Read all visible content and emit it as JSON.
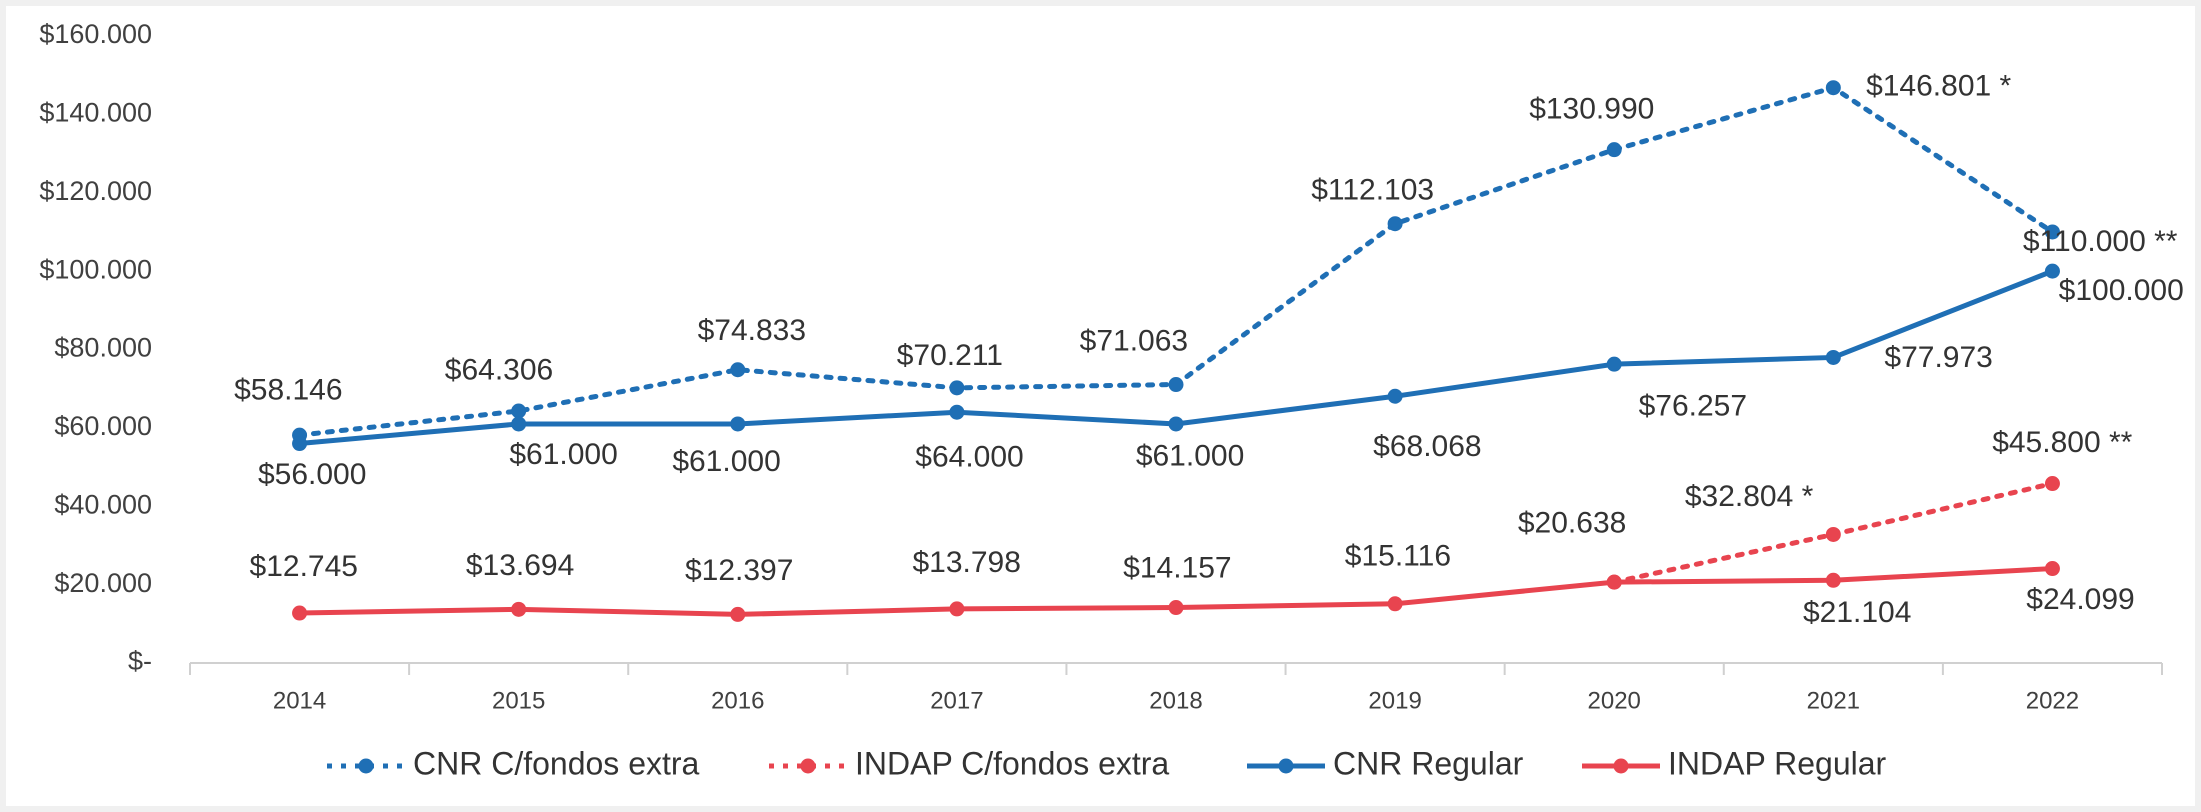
{
  "chart_data": {
    "type": "line",
    "categories": [
      "2014",
      "2015",
      "2016",
      "2017",
      "2018",
      "2019",
      "2020",
      "2021",
      "2022"
    ],
    "series": [
      {
        "name": "CNR C/fondos extra",
        "color": "#1f6fb5",
        "line_style": "dotted",
        "values": [
          58146,
          64306,
          74833,
          70211,
          71063,
          112103,
          130990,
          146801,
          110000
        ],
        "value_labels": [
          "$58.146",
          "$64.306",
          "$74.833",
          "$70.211",
          "$71.063",
          "$112.103",
          "$130.990",
          "$146.801 *",
          "$110.000 **"
        ]
      },
      {
        "name": "INDAP C/fondos extra",
        "color": "#e8444f",
        "line_style": "dotted",
        "values": [
          null,
          null,
          null,
          null,
          null,
          null,
          20638,
          32804,
          45800
        ],
        "value_labels": [
          null,
          null,
          null,
          null,
          null,
          null,
          null,
          "$32.804 *",
          "$45.800 **"
        ]
      },
      {
        "name": "CNR Regular",
        "color": "#1f6fb5",
        "line_style": "solid",
        "values": [
          56000,
          61000,
          61000,
          64000,
          61000,
          68068,
          76257,
          77973,
          100000
        ],
        "value_labels": [
          "$56.000",
          "$61.000",
          "$61.000",
          "$64.000",
          "$61.000",
          "$68.068",
          "$76.257",
          "$77.973",
          "$100.000"
        ]
      },
      {
        "name": "INDAP Regular",
        "color": "#e8444f",
        "line_style": "solid",
        "values": [
          12745,
          13694,
          12397,
          13798,
          14157,
          15116,
          20638,
          21104,
          24099
        ],
        "value_labels": [
          "$12.745",
          "$13.694",
          "$12.397",
          "$13.798",
          "$14.157",
          "$15.116",
          "$20.638",
          "$21.104",
          "$24.099"
        ]
      }
    ],
    "ylim": [
      0,
      160000
    ],
    "yticks": [
      {
        "value": 0,
        "label": "$-"
      },
      {
        "value": 20000,
        "label": "$20.000"
      },
      {
        "value": 40000,
        "label": "$40.000"
      },
      {
        "value": 60000,
        "label": "$60.000"
      },
      {
        "value": 80000,
        "label": "$80.000"
      },
      {
        "value": 100000,
        "label": "$100.000"
      },
      {
        "value": 120000,
        "label": "$120.000"
      },
      {
        "value": 140000,
        "label": "$140.000"
      },
      {
        "value": 160000,
        "label": "$160.000"
      }
    ],
    "grid": false,
    "legend": "bottom"
  }
}
